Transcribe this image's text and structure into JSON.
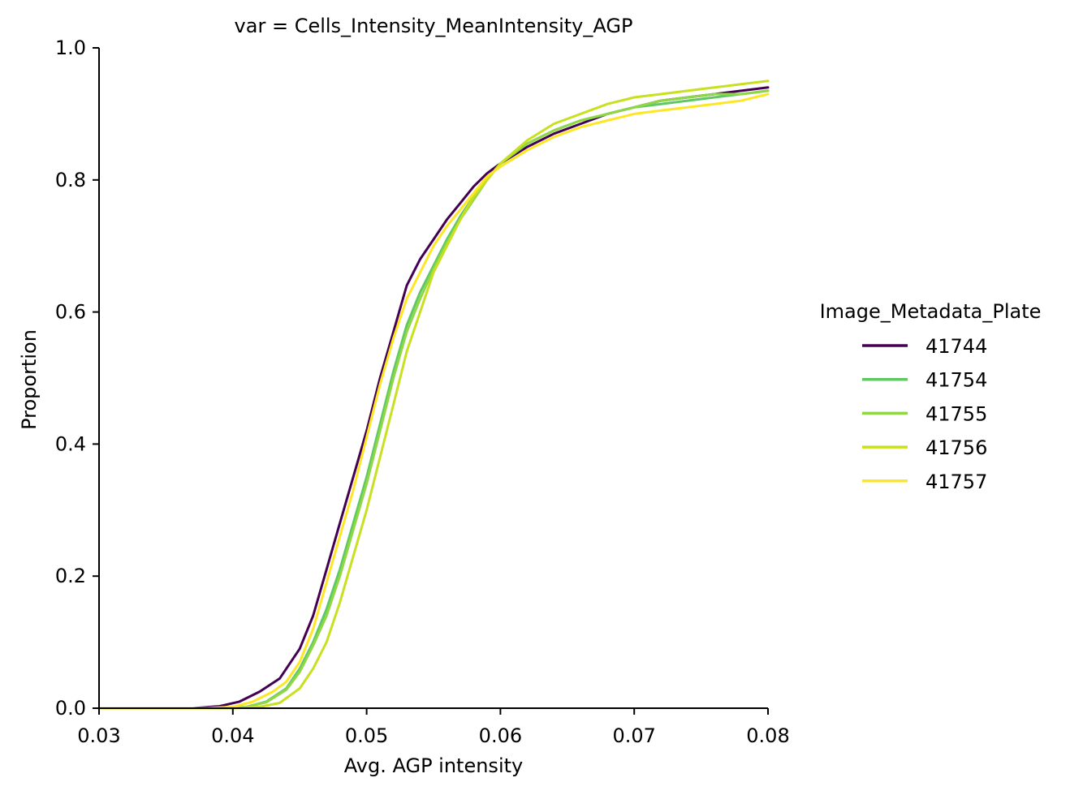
{
  "chart_data": {
    "type": "line",
    "title": "var = Cells_Intensity_MeanIntensity_AGP",
    "xlabel": "Avg. AGP intensity",
    "ylabel": "Proportion",
    "xlim": [
      0.03,
      0.08
    ],
    "ylim": [
      0.0,
      1.0
    ],
    "xticks": [
      0.03,
      0.04,
      0.05,
      0.06,
      0.07,
      0.08
    ],
    "xtick_labels": [
      "0.03",
      "0.04",
      "0.05",
      "0.06",
      "0.07",
      "0.08"
    ],
    "yticks": [
      0.0,
      0.2,
      0.4,
      0.6,
      0.8,
      1.0
    ],
    "ytick_labels": [
      "0.0",
      "0.2",
      "0.4",
      "0.6",
      "0.8",
      "1.0"
    ],
    "grid": false,
    "legend": {
      "title": "Image_Metadata_Plate",
      "placement": "right"
    },
    "series": [
      {
        "name": "41744",
        "color": "#440154",
        "x": [
          0.03,
          0.037,
          0.039,
          0.0405,
          0.042,
          0.0435,
          0.045,
          0.046,
          0.047,
          0.048,
          0.049,
          0.05,
          0.051,
          0.052,
          0.053,
          0.054,
          0.055,
          0.056,
          0.057,
          0.058,
          0.059,
          0.06,
          0.062,
          0.064,
          0.066,
          0.068,
          0.07,
          0.072,
          0.074,
          0.076,
          0.078,
          0.08
        ],
        "y": [
          0.0,
          0.0,
          0.003,
          0.01,
          0.025,
          0.045,
          0.09,
          0.14,
          0.21,
          0.28,
          0.35,
          0.42,
          0.5,
          0.57,
          0.64,
          0.68,
          0.71,
          0.74,
          0.765,
          0.79,
          0.81,
          0.825,
          0.85,
          0.87,
          0.885,
          0.9,
          0.91,
          0.92,
          0.925,
          0.93,
          0.935,
          0.94
        ]
      },
      {
        "name": "41754",
        "color": "#5ec962",
        "x": [
          0.03,
          0.039,
          0.041,
          0.0425,
          0.044,
          0.045,
          0.046,
          0.047,
          0.048,
          0.049,
          0.05,
          0.051,
          0.052,
          0.053,
          0.054,
          0.055,
          0.056,
          0.057,
          0.058,
          0.059,
          0.06,
          0.062,
          0.064,
          0.066,
          0.068,
          0.07,
          0.072,
          0.074,
          0.076,
          0.078,
          0.08
        ],
        "y": [
          0.0,
          0.0,
          0.002,
          0.01,
          0.03,
          0.06,
          0.1,
          0.15,
          0.21,
          0.28,
          0.35,
          0.43,
          0.51,
          0.58,
          0.63,
          0.67,
          0.71,
          0.745,
          0.775,
          0.8,
          0.825,
          0.855,
          0.875,
          0.89,
          0.9,
          0.91,
          0.915,
          0.92,
          0.925,
          0.93,
          0.935
        ]
      },
      {
        "name": "41755",
        "color": "#8fd744",
        "x": [
          0.03,
          0.039,
          0.041,
          0.0425,
          0.044,
          0.045,
          0.046,
          0.047,
          0.048,
          0.049,
          0.05,
          0.051,
          0.052,
          0.053,
          0.054,
          0.055,
          0.056,
          0.057,
          0.058,
          0.059,
          0.06,
          0.062,
          0.064,
          0.066,
          0.068,
          0.07,
          0.072,
          0.074,
          0.076,
          0.078,
          0.08
        ],
        "y": [
          0.0,
          0.0,
          0.002,
          0.009,
          0.028,
          0.055,
          0.095,
          0.14,
          0.2,
          0.27,
          0.34,
          0.42,
          0.5,
          0.57,
          0.62,
          0.665,
          0.705,
          0.74,
          0.77,
          0.8,
          0.825,
          0.855,
          0.875,
          0.89,
          0.9,
          0.91,
          0.92,
          0.925,
          0.93,
          0.93,
          0.935
        ]
      },
      {
        "name": "41756",
        "color": "#c8e020",
        "x": [
          0.03,
          0.04,
          0.042,
          0.0435,
          0.045,
          0.046,
          0.047,
          0.048,
          0.049,
          0.05,
          0.051,
          0.052,
          0.053,
          0.054,
          0.055,
          0.056,
          0.057,
          0.058,
          0.059,
          0.06,
          0.062,
          0.064,
          0.066,
          0.068,
          0.07,
          0.072,
          0.074,
          0.076,
          0.078,
          0.08
        ],
        "y": [
          0.0,
          0.0,
          0.002,
          0.008,
          0.03,
          0.06,
          0.1,
          0.16,
          0.23,
          0.3,
          0.38,
          0.46,
          0.54,
          0.6,
          0.66,
          0.7,
          0.74,
          0.775,
          0.8,
          0.825,
          0.86,
          0.885,
          0.9,
          0.915,
          0.925,
          0.93,
          0.935,
          0.94,
          0.945,
          0.95
        ]
      },
      {
        "name": "41757",
        "color": "#fde725",
        "x": [
          0.03,
          0.038,
          0.04,
          0.0415,
          0.043,
          0.044,
          0.045,
          0.046,
          0.047,
          0.048,
          0.049,
          0.05,
          0.051,
          0.052,
          0.053,
          0.054,
          0.055,
          0.056,
          0.057,
          0.058,
          0.059,
          0.06,
          0.062,
          0.064,
          0.066,
          0.068,
          0.07,
          0.072,
          0.074,
          0.076,
          0.078,
          0.08
        ],
        "y": [
          0.0,
          0.0,
          0.002,
          0.01,
          0.025,
          0.04,
          0.07,
          0.12,
          0.19,
          0.26,
          0.33,
          0.41,
          0.49,
          0.56,
          0.62,
          0.66,
          0.7,
          0.73,
          0.755,
          0.78,
          0.805,
          0.82,
          0.845,
          0.865,
          0.88,
          0.89,
          0.9,
          0.905,
          0.91,
          0.915,
          0.92,
          0.93
        ]
      }
    ]
  }
}
